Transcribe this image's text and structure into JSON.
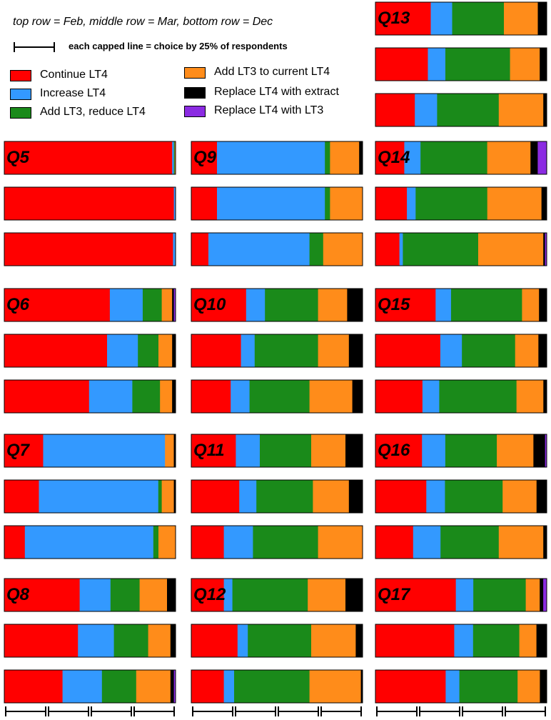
{
  "notes": {
    "rows": "top row = Feb, middle row = Mar, bottom row = Dec",
    "scale": "each capped line = choice by 25% of respondents"
  },
  "chart_data": {
    "type": "bar",
    "orientation": "horizontal",
    "stacked": true,
    "normalized": true,
    "rows": [
      "Feb",
      "Mar",
      "Dec"
    ],
    "categories": [
      {
        "name": "Continue LT4",
        "color": "#ff0000"
      },
      {
        "name": "Increase LT4",
        "color": "#3399ff"
      },
      {
        "name": "Add LT3, reduce LT4",
        "color": "#1a8a1a"
      },
      {
        "name": "Add LT3 to current LT4",
        "color": "#ff8c1a"
      },
      {
        "name": "Replace LT4 with extract",
        "color": "#000000"
      },
      {
        "name": "Replace LT4 with LT3",
        "color": "#8b2be2"
      }
    ],
    "panels": [
      {
        "label": "Q5",
        "values": [
          [
            98,
            1,
            0.5,
            0.5,
            0,
            0
          ],
          [
            99,
            1,
            0,
            0,
            0,
            0
          ],
          [
            98.5,
            1.5,
            0,
            0,
            0,
            0
          ]
        ]
      },
      {
        "label": "Q6",
        "values": [
          [
            61,
            19,
            11,
            6,
            1,
            1
          ],
          [
            60,
            18,
            12,
            8,
            2,
            0
          ],
          [
            49,
            25,
            16,
            7,
            2,
            0
          ]
        ]
      },
      {
        "label": "Q7",
        "values": [
          [
            22,
            69,
            0,
            5,
            1,
            0
          ],
          [
            20,
            69,
            2,
            7,
            1,
            0
          ],
          [
            12,
            75,
            3,
            10,
            0,
            0
          ]
        ]
      },
      {
        "label": "Q8",
        "values": [
          [
            44,
            18,
            17,
            16,
            5,
            0
          ],
          [
            43,
            21,
            20,
            13,
            3,
            0
          ],
          [
            34,
            23,
            20,
            20,
            2,
            1
          ]
        ]
      },
      {
        "label": "Q9",
        "values": [
          [
            15,
            63,
            3,
            17,
            2,
            0
          ],
          [
            15,
            63,
            3,
            19,
            0,
            0
          ],
          [
            10,
            59,
            8,
            23,
            0,
            0
          ]
        ]
      },
      {
        "label": "Q10",
        "values": [
          [
            32,
            11,
            31,
            17,
            9,
            0
          ],
          [
            29,
            8,
            37,
            18,
            8,
            0
          ],
          [
            23,
            11,
            35,
            25,
            6,
            0
          ]
        ]
      },
      {
        "label": "Q11",
        "values": [
          [
            26,
            14,
            30,
            20,
            10,
            0
          ],
          [
            28,
            10,
            33,
            21,
            8,
            0
          ],
          [
            19,
            17,
            38,
            26,
            0,
            0
          ]
        ]
      },
      {
        "label": "Q12",
        "values": [
          [
            19,
            5,
            44,
            22,
            10,
            0
          ],
          [
            27,
            6,
            37,
            26,
            4,
            0
          ],
          [
            19,
            6,
            44,
            30,
            1,
            0
          ]
        ]
      },
      {
        "label": "Q13",
        "values": [
          [
            31,
            12,
            29,
            19,
            5,
            0
          ],
          [
            30,
            10,
            37,
            17,
            4,
            0
          ],
          [
            23,
            13,
            36,
            26,
            2,
            0
          ]
        ]
      },
      {
        "label": "Q14",
        "values": [
          [
            16,
            9,
            37,
            24,
            4,
            5
          ],
          [
            18,
            5,
            41,
            31,
            3,
            0
          ],
          [
            14,
            2,
            44,
            38,
            1,
            1
          ]
        ]
      },
      {
        "label": "Q15",
        "values": [
          [
            39,
            10,
            46,
            11,
            5,
            0
          ],
          [
            39,
            13,
            32,
            14,
            5,
            0
          ],
          [
            28,
            10,
            46,
            16,
            2,
            0
          ]
        ]
      },
      {
        "label": "Q16",
        "values": [
          [
            28,
            14,
            31,
            22,
            7,
            1
          ],
          [
            30,
            11,
            34,
            20,
            6,
            0
          ],
          [
            22,
            16,
            34,
            26,
            2,
            0
          ]
        ]
      },
      {
        "label": "Q17",
        "values": [
          [
            46,
            10,
            30,
            8,
            2,
            2
          ],
          [
            46,
            11,
            27,
            10,
            6,
            0
          ],
          [
            41,
            8,
            34,
            13,
            4,
            0
          ]
        ]
      }
    ],
    "scale_bar_percent": 25
  }
}
